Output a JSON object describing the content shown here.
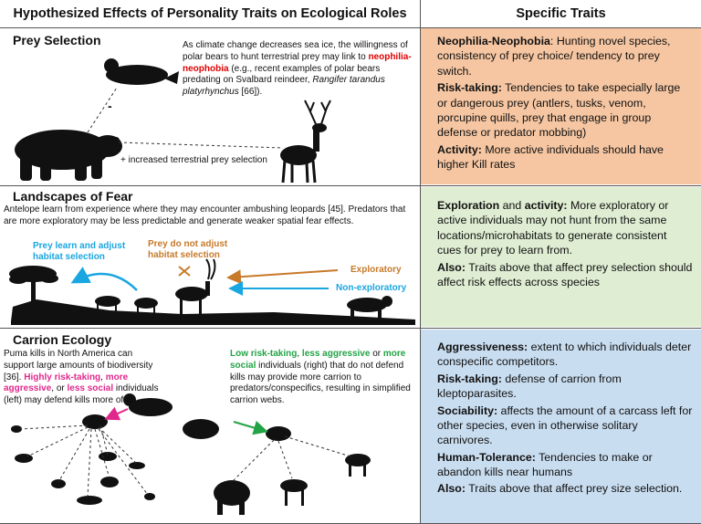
{
  "header": {
    "left_title": "Hypothesized Effects of Personality Traits on Ecological Roles",
    "right_title": "Specific Traits"
  },
  "colors": {
    "prey_panel": "#f6c6a2",
    "fear_panel": "#dfedd3",
    "carrion_panel": "#c9ddf0",
    "blue_label": "#1aa6e0",
    "orange_label": "#c77a2a",
    "pink_text": "#e0288c",
    "green_text": "#22a345",
    "red_term": "#e00000"
  },
  "prey": {
    "title": "Prey Selection",
    "text_1": "As climate change decreases sea ice, the willingness of polar bears to hunt terrestrial prey may link to",
    "term": "neophilia-neophobia",
    "text_2": "(e.g., recent examples of polar bears predating on Svalbard reindeer,",
    "species": "Rangifer tarandus platyrhynchus",
    "text_3": "[66]).",
    "minus": "-",
    "plus_label": "+ increased terrestrial prey selection",
    "traits": [
      {
        "name": "Neophilia-Neophobia",
        "sep": ":",
        "desc": " Hunting novel species, consistency of prey choice/ tendency to prey switch."
      },
      {
        "name": "Risk-taking:",
        "sep": "",
        "desc": " Tendencies to take especially large or dangerous prey (antlers, tusks, venom,  porcupine quills, prey that engage in group defense or predator mobbing)"
      },
      {
        "name": "Activity:",
        "sep": "",
        "desc": " More active individuals should have higher Kill rates"
      }
    ]
  },
  "fear": {
    "title": "Landscapes of Fear",
    "text": "Antelope learn from experience where they may encounter ambushing leopards [45]. Predators that are more exploratory may be less predictable and generate weaker spatial fear effects.",
    "learn_label": "Prey learn and adjust habitat selection",
    "not_label": "Prey do not adjust habitat selection",
    "exploratory": "Exploratory",
    "non_exploratory": "Non-exploratory",
    "t1_name": "Exploration",
    "t1_and": " and ",
    "t1_name2": "activity:",
    "t1_desc": " More exploratory or active individuals may not hunt from the same locations/microhabitats to generate consistent cues for prey to learn from.",
    "t2_name": "Also:",
    "t2_desc": " Traits above that affect prey selection should affect risk effects across species"
  },
  "carrion": {
    "title": "Carrion Ecology",
    "text_1": "Puma kills in North America can support large amounts of biodiversity [36].",
    "pink_1": "Highly risk-taking",
    "comma_1": ",",
    "pink_2": "more aggressive",
    "or_1": ", or",
    "pink_3": "less social",
    "text_2": "individuals (left) may defend kills more often",
    "green_1": "Low risk-taking",
    "comma_2": ",",
    "green_2": "less aggressive",
    "or_2": "or",
    "green_3": "more social",
    "text_3": "individuals (right) that do not defend kills may provide more carrion to predators/conspecifics, resulting in simplified carrion webs.",
    "traits": [
      {
        "name": "Aggressiveness:",
        "desc": " extent to which individuals deter conspecific competitors."
      },
      {
        "name": "Risk-taking:",
        "desc": " defense of carrion from kleptoparasites."
      },
      {
        "name": "Sociability:",
        "desc": " affects the amount of a carcass left for other species, even in otherwise solitary carnivores."
      },
      {
        "name": "Human-Tolerance:",
        "desc": " Tendencies to make or abandon kills near humans"
      },
      {
        "name": "Also:",
        "desc": " Traits above that affect prey size selection."
      }
    ]
  }
}
